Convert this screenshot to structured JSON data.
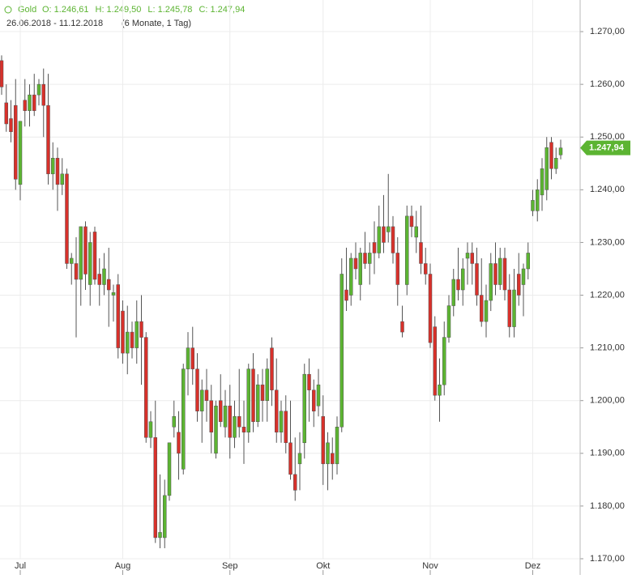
{
  "chart_data": {
    "type": "candlestick",
    "instrument": "Gold",
    "header_values": [
      "O: 1.246,61",
      "H: 1.249,50",
      "L: 1.245,78",
      "C: 1.247,94"
    ],
    "date_range": "26.06.2018 - 11.12.2018",
    "period": "(6 Monate, 1 Tag)",
    "up_color": "#5cb432",
    "down_color": "#d7312b",
    "grid": true,
    "ylim": [
      1168,
      1276
    ],
    "yticks": [
      {
        "value": 1170,
        "label": "1.170,00"
      },
      {
        "value": 1180,
        "label": "1.180,00"
      },
      {
        "value": 1190,
        "label": "1.190,00"
      },
      {
        "value": 1200,
        "label": "1.200,00"
      },
      {
        "value": 1210,
        "label": "1.210,00"
      },
      {
        "value": 1220,
        "label": "1.220,00"
      },
      {
        "value": 1230,
        "label": "1.230,00"
      },
      {
        "value": 1240,
        "label": "1.240,00"
      },
      {
        "value": 1250,
        "label": "1.250,00"
      },
      {
        "value": 1260,
        "label": "1.260,00"
      },
      {
        "value": 1270,
        "label": "1.270,00"
      }
    ],
    "last_price": {
      "value": 1247.94,
      "label": "1.247,94"
    },
    "categories": [
      null,
      null,
      null,
      null,
      "Jul",
      null,
      null,
      null,
      null,
      null,
      null,
      null,
      null,
      null,
      null,
      null,
      null,
      null,
      null,
      null,
      null,
      null,
      null,
      null,
      null,
      null,
      "Aug",
      null,
      null,
      null,
      null,
      null,
      null,
      null,
      null,
      null,
      null,
      null,
      null,
      null,
      null,
      null,
      null,
      null,
      null,
      null,
      null,
      null,
      null,
      "Sep",
      null,
      null,
      null,
      null,
      null,
      null,
      null,
      null,
      null,
      null,
      null,
      null,
      null,
      null,
      null,
      null,
      null,
      null,
      null,
      "Okt",
      null,
      null,
      null,
      null,
      null,
      null,
      null,
      null,
      null,
      null,
      null,
      null,
      null,
      null,
      null,
      null,
      null,
      null,
      null,
      null,
      null,
      null,
      "Nov",
      null,
      null,
      null,
      null,
      null,
      null,
      null,
      null,
      null,
      null,
      null,
      null,
      null,
      null,
      null,
      null,
      null,
      null,
      null,
      null,
      null,
      "Dez",
      null,
      null,
      null,
      null,
      null,
      null
    ],
    "ohlc": [
      [
        1264.5,
        1265.5,
        1258,
        1259.5
      ],
      [
        1256.5,
        1260,
        1251,
        1252.5
      ],
      [
        1253.5,
        1257,
        1249,
        1251
      ],
      [
        1256,
        1261,
        1240,
        1242
      ],
      [
        1241,
        1253,
        1238,
        1253
      ],
      [
        1257,
        1261,
        1252,
        1255
      ],
      [
        1255,
        1260,
        1252,
        1258
      ],
      [
        1258,
        1262,
        1254,
        1255
      ],
      [
        1258,
        1261,
        1256,
        1260
      ],
      [
        1260,
        1263,
        1250,
        1256
      ],
      [
        1256,
        1262,
        1241,
        1243
      ],
      [
        1243,
        1249,
        1240,
        1246
      ],
      [
        1246,
        1248,
        1236,
        1241
      ],
      [
        1241,
        1246,
        1239,
        1243
      ],
      [
        1243,
        1244,
        1225,
        1226
      ],
      [
        1226,
        1228,
        1222,
        1227
      ],
      [
        1226,
        1231,
        1212,
        1223
      ],
      [
        1223,
        1233,
        1218,
        1233
      ],
      [
        1233,
        1234,
        1221,
        1224
      ],
      [
        1222,
        1232,
        1218,
        1230
      ],
      [
        1232,
        1233,
        1222,
        1223
      ],
      [
        1224,
        1227,
        1218,
        1222
      ],
      [
        1222,
        1228,
        1220,
        1225
      ],
      [
        1223,
        1229,
        1214,
        1221
      ],
      [
        1220,
        1222,
        1215,
        1220.5
      ],
      [
        1222,
        1224,
        1208,
        1210
      ],
      [
        1217,
        1219,
        1207,
        1209
      ],
      [
        1209,
        1218,
        1205,
        1213
      ],
      [
        1213,
        1215,
        1208,
        1210
      ],
      [
        1210,
        1219,
        1207,
        1215
      ],
      [
        1215,
        1220,
        1203,
        1212
      ],
      [
        1212,
        1213,
        1192,
        1193
      ],
      [
        1193,
        1198,
        1191,
        1196
      ],
      [
        1193,
        1200,
        1173,
        1174
      ],
      [
        1174,
        1186,
        1172,
        1175
      ],
      [
        1174,
        1185,
        1172,
        1182
      ],
      [
        1182,
        1192,
        1181,
        1192
      ],
      [
        1195,
        1200,
        1193,
        1197
      ],
      [
        1194,
        1198,
        1185,
        1190
      ],
      [
        1187,
        1207,
        1186,
        1206
      ],
      [
        1206,
        1213,
        1201,
        1210
      ],
      [
        1210,
        1214,
        1203,
        1206
      ],
      [
        1206,
        1209,
        1196,
        1198
      ],
      [
        1198,
        1204,
        1192,
        1202
      ],
      [
        1202,
        1206,
        1196,
        1200
      ],
      [
        1200,
        1203,
        1190,
        1194
      ],
      [
        1190,
        1200,
        1189,
        1199
      ],
      [
        1200,
        1205,
        1195,
        1196
      ],
      [
        1195,
        1202,
        1193,
        1199
      ],
      [
        1199,
        1203,
        1189,
        1193
      ],
      [
        1193,
        1200,
        1191,
        1197
      ],
      [
        1197,
        1206,
        1193,
        1195
      ],
      [
        1195,
        1200,
        1188,
        1194
      ],
      [
        1194,
        1207,
        1192,
        1206
      ],
      [
        1206,
        1209,
        1194,
        1196
      ],
      [
        1196,
        1205,
        1195,
        1203
      ],
      [
        1203,
        1206,
        1196,
        1200
      ],
      [
        1200,
        1208,
        1196,
        1206
      ],
      [
        1210,
        1212,
        1199,
        1202
      ],
      [
        1202,
        1208,
        1192,
        1194
      ],
      [
        1194,
        1200,
        1192,
        1198
      ],
      [
        1198,
        1201,
        1190,
        1192
      ],
      [
        1192,
        1200,
        1185,
        1186
      ],
      [
        1186,
        1193,
        1181,
        1183
      ],
      [
        1188,
        1194,
        1183,
        1190
      ],
      [
        1192,
        1207,
        1189,
        1205
      ],
      [
        1205,
        1208,
        1196,
        1202
      ],
      [
        1202,
        1204,
        1195,
        1198
      ],
      [
        1199,
        1206,
        1197,
        1203
      ],
      [
        1197,
        1201,
        1184,
        1188
      ],
      [
        1188,
        1194,
        1183,
        1192
      ],
      [
        1190,
        1193,
        1185,
        1188
      ],
      [
        1188,
        1197,
        1186,
        1195
      ],
      [
        1195,
        1227,
        1194,
        1224
      ],
      [
        1221,
        1229,
        1217,
        1219
      ],
      [
        1220,
        1228,
        1218,
        1227
      ],
      [
        1227,
        1230,
        1223,
        1225
      ],
      [
        1222,
        1229,
        1219,
        1228
      ],
      [
        1228,
        1232,
        1225,
        1226
      ],
      [
        1226,
        1230,
        1222,
        1228
      ],
      [
        1230,
        1234,
        1224,
        1228
      ],
      [
        1228,
        1237,
        1227,
        1233
      ],
      [
        1233,
        1239,
        1228,
        1230
      ],
      [
        1232,
        1243,
        1230,
        1233
      ],
      [
        1233,
        1235,
        1226,
        1228
      ],
      [
        1228,
        1231,
        1218,
        1222
      ],
      [
        1215,
        1218,
        1212,
        1213
      ],
      [
        1222,
        1237,
        1220,
        1235
      ],
      [
        1235,
        1237,
        1231,
        1233
      ],
      [
        1231,
        1236,
        1228,
        1233
      ],
      [
        1230,
        1237,
        1224,
        1226
      ],
      [
        1226,
        1229,
        1222,
        1224
      ],
      [
        1224,
        1226,
        1210,
        1211
      ],
      [
        1214,
        1216,
        1200,
        1201
      ],
      [
        1201,
        1208,
        1196,
        1203
      ],
      [
        1203,
        1215,
        1201,
        1212
      ],
      [
        1212,
        1220,
        1211,
        1218
      ],
      [
        1218,
        1225,
        1216,
        1223
      ],
      [
        1223,
        1229,
        1219,
        1221
      ],
      [
        1221,
        1227,
        1218,
        1225
      ],
      [
        1227,
        1230,
        1222,
        1228
      ],
      [
        1228,
        1230,
        1222,
        1226
      ],
      [
        1226,
        1229,
        1218,
        1220
      ],
      [
        1220,
        1227,
        1214,
        1215
      ],
      [
        1215,
        1222,
        1212,
        1219
      ],
      [
        1219,
        1228,
        1217,
        1226
      ],
      [
        1226,
        1230,
        1220,
        1222
      ],
      [
        1222,
        1229,
        1221,
        1227
      ],
      [
        1227,
        1229,
        1219,
        1221
      ],
      [
        1221,
        1224,
        1212,
        1214
      ],
      [
        1214,
        1225,
        1212,
        1221
      ],
      [
        1224,
        1228,
        1218,
        1220
      ],
      [
        1222,
        1226,
        1216,
        1225
      ],
      [
        1225,
        1230,
        1223,
        1228
      ],
      [
        1236,
        1240,
        1235,
        1238
      ],
      [
        1236,
        1242,
        1234,
        1240
      ],
      [
        1239,
        1246,
        1236,
        1244
      ],
      [
        1240,
        1250,
        1238,
        1248
      ],
      [
        1249,
        1250,
        1242,
        1244
      ],
      [
        1244,
        1248,
        1243,
        1246
      ],
      [
        1246.61,
        1249.5,
        1245.78,
        1247.94
      ]
    ]
  }
}
